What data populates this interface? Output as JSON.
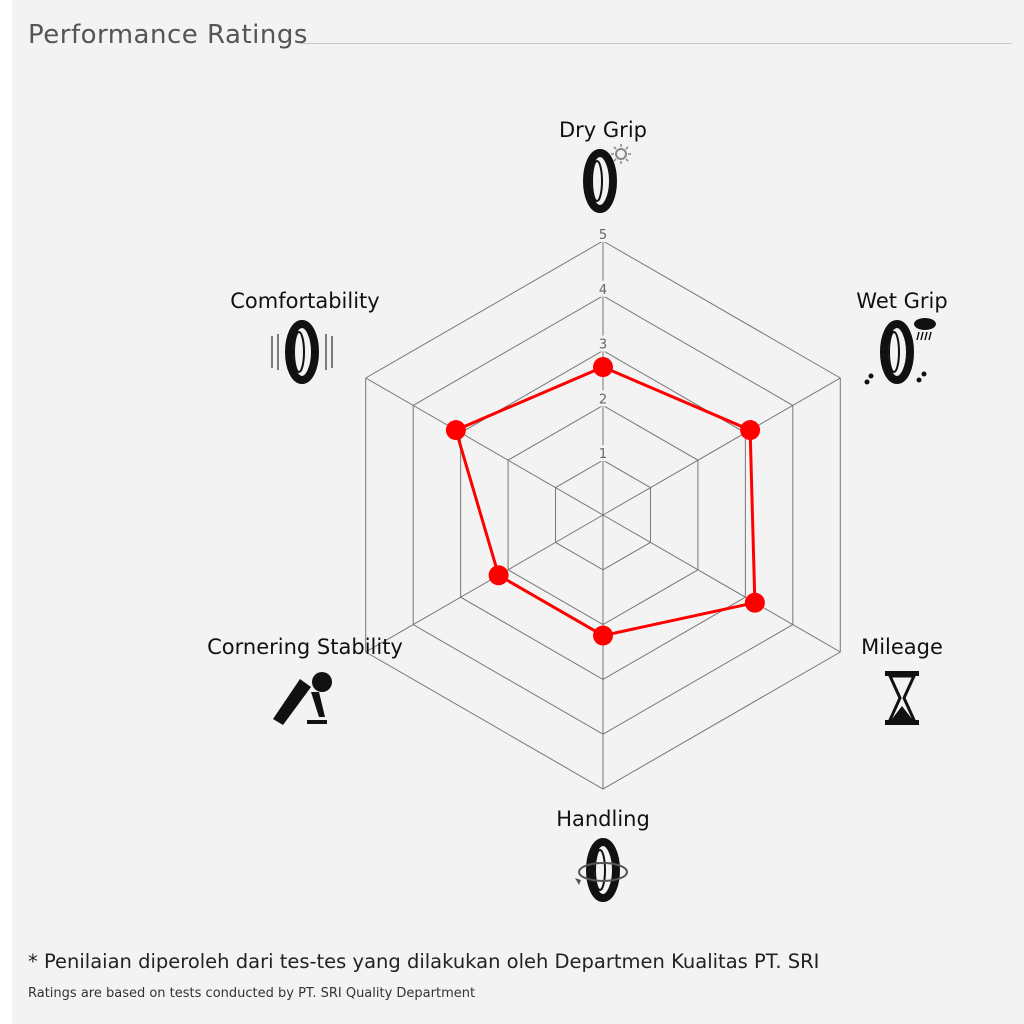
{
  "header": {
    "title": "Performance Ratings"
  },
  "chart_data": {
    "type": "radar",
    "title": "",
    "axes": [
      "Dry Grip",
      "Wet Grip",
      "Mileage",
      "Handling",
      "Cornering Stability",
      "Comfortability"
    ],
    "axis_icons": [
      "tire-sun-icon",
      "tire-rain-icon",
      "hourglass-icon",
      "tire-rotate-icon",
      "motorcycle-rider-icon",
      "tire-vibration-icon"
    ],
    "values": [
      2.7,
      3.1,
      3.2,
      2.2,
      2.2,
      3.1
    ],
    "range": [
      0,
      5
    ],
    "ticks": [
      "1",
      "2",
      "3",
      "4",
      "5"
    ],
    "series_color": "#ff0000",
    "grid_color": "#777777"
  },
  "notes": {
    "indonesian": "* Penilaian diperoleh dari tes-tes yang dilakukan oleh Departmen Kualitas PT. SRI",
    "english": "Ratings are based on tests conducted by PT. SRI Quality Department"
  }
}
